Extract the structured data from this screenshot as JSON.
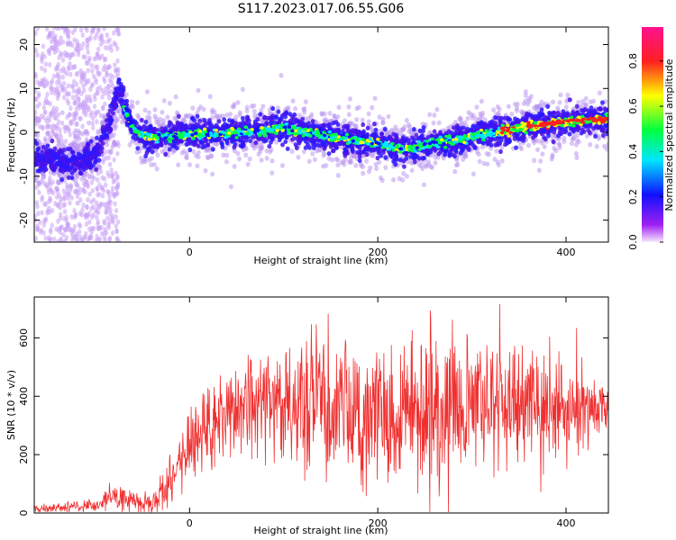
{
  "title": "S117.2023.017.06.55.G06",
  "chart_data": [
    {
      "type": "heatmap",
      "xlabel": "Height of straight line (km)",
      "ylabel": "Frequency (Hz)",
      "xlim": [
        -165,
        445
      ],
      "ylim": [
        -25,
        24
      ],
      "xticks": [
        0,
        200,
        400
      ],
      "yticks": [
        -20,
        -10,
        0,
        10,
        20
      ],
      "colorbar": {
        "label": "Normalized spectral amplitude",
        "range": [
          0,
          0.95
        ],
        "ticks": [
          "0.0",
          "0.2",
          "0.4",
          "0.6",
          "0.8"
        ],
        "colors": [
          "#f5e9ff",
          "#a020f0",
          "#1010ff",
          "#00e5ff",
          "#00ff40",
          "#ffff00",
          "#ff2020",
          "#ff1090"
        ]
      },
      "ridge": {
        "x": [
          -150,
          -120,
          -100,
          -85,
          -75,
          -68,
          -60,
          -50,
          -40,
          0,
          50,
          100,
          150,
          200,
          230,
          260,
          300,
          350,
          400,
          445
        ],
        "y": [
          -6,
          -7,
          -5,
          2,
          10,
          5,
          1,
          -1,
          -1,
          -0.5,
          0,
          1,
          -1,
          -2.5,
          -4,
          -2.5,
          -1,
          1,
          2.5,
          3
        ]
      }
    },
    {
      "type": "line",
      "xlabel": "Height of straight line (km)",
      "ylabel": "SNR (10 * v/v)",
      "xlim": [
        -165,
        445
      ],
      "ylim": [
        0,
        740
      ],
      "xticks": [
        0,
        200,
        400
      ],
      "yticks": [
        0,
        200,
        400,
        600
      ],
      "color": "#f03030",
      "envelope": {
        "x": [
          -165,
          -100,
          -80,
          -60,
          -40,
          -20,
          0,
          20,
          50,
          100,
          150,
          200,
          250,
          300,
          350,
          400,
          445
        ],
        "mean": [
          15,
          25,
          60,
          35,
          30,
          120,
          220,
          300,
          360,
          370,
          360,
          350,
          360,
          380,
          370,
          360,
          350
        ],
        "spread": [
          10,
          15,
          40,
          25,
          30,
          70,
          90,
          100,
          110,
          140,
          170,
          180,
          190,
          180,
          150,
          110,
          60
        ]
      }
    }
  ]
}
